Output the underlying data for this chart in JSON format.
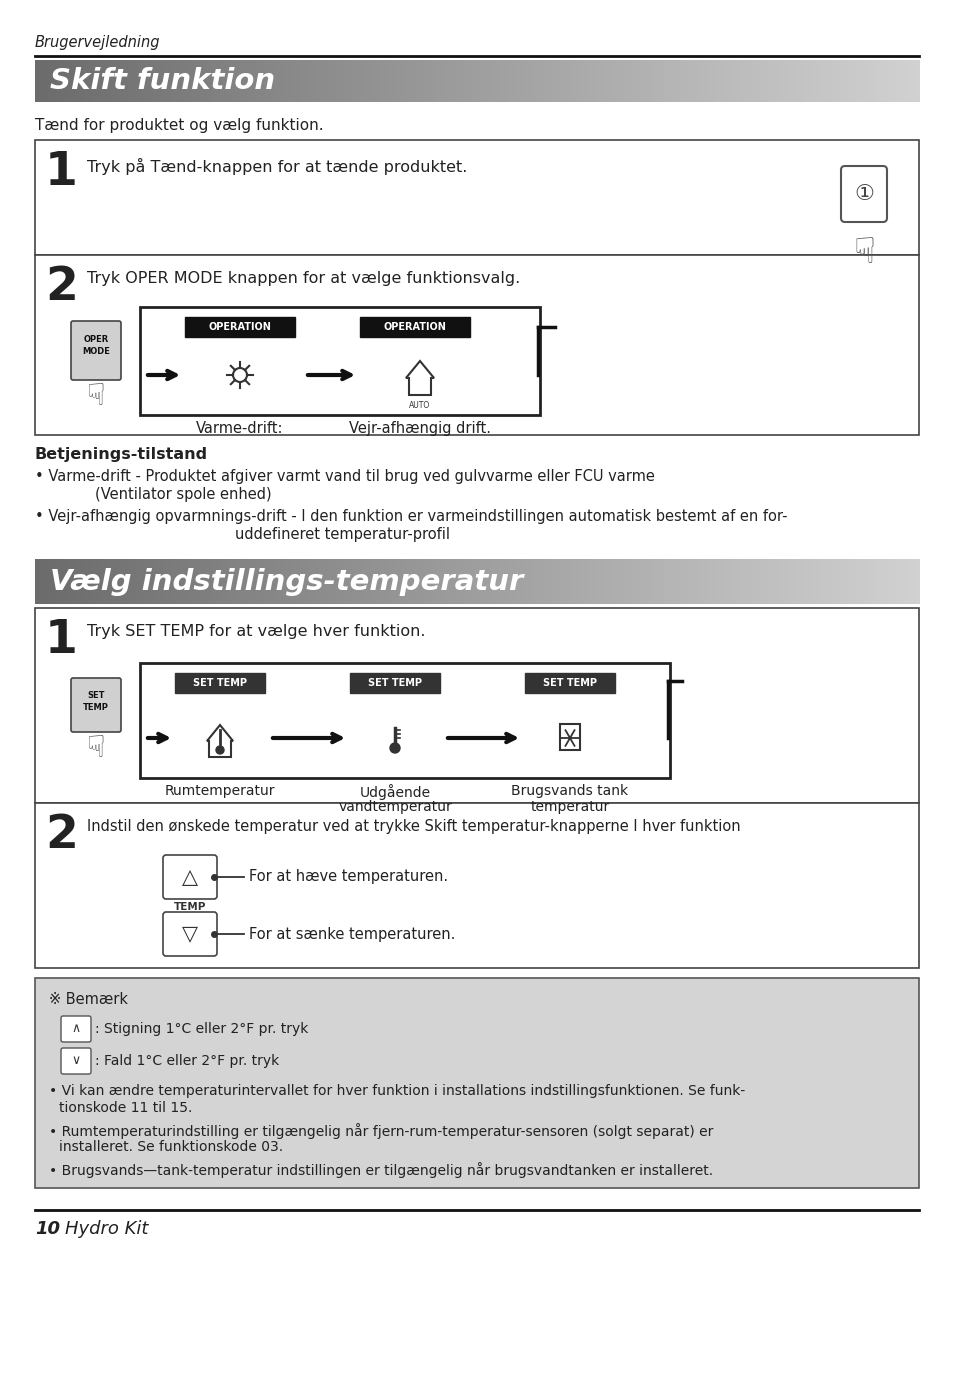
{
  "page_title_top": "Brugervejledning",
  "section1_title": "Skift funktion",
  "section1_subtitle": "Tænd for produktet og vælg funktion.",
  "step1_text": "Tryk på Tænd-knappen for at tænde produktet.",
  "step2_text": "Tryk OPER MODE knappen for at vælge funktionsvalg.",
  "step2_label1": "OPERATION",
  "step2_label2": "OPERATION",
  "step2_sub1": "Varme-drift:",
  "step2_sub2": "Vejr-afhængig drift.",
  "betjenings_title": "Betjenings-tilstand",
  "betjenings_text1a": "• Varme-drift - Produktet afgiver varmt vand til brug ved gulvvarme eller FCU varme",
  "betjenings_text1b": "(Ventilator spole enhed)",
  "betjenings_text2": "• Vejr-afhængig opvarmnings-drift - I den funktion er varmeindstillingen automatisk bestemt af en for-",
  "betjenings_text2b": "uddefineret temperatur-profil",
  "section2_title": "Vælg indstillings-temperatur",
  "s2_step1_text": "Tryk SET TEMP for at vælge hver funktion.",
  "s2_label1": "SET TEMP",
  "s2_label2": "SET TEMP",
  "s2_label3": "SET TEMP",
  "s2_sub1": "Rumtemperatur",
  "s2_sub2a": "Udgående",
  "s2_sub2b": "vandtemperatur",
  "s2_sub3a": "Brugsvands tank",
  "s2_sub3b": "temperatur",
  "s2_step2_text": "Indstil den ønskede temperatur ved at trykke Skift temperatur-knapperne I hver funktion",
  "s2_up_text": "For at hæve temperaturen.",
  "s2_down_text": "For at sænke temperaturen.",
  "note_title": "※ Bemærk",
  "note_up_sym": "∧",
  "note_up_text": ": Stigning 1°C eller 2°F pr. tryk",
  "note_down_sym": "∨",
  "note_down_text": ": Fald 1°C eller 2°F pr. tryk",
  "note1a": "• Vi kan ændre temperaturintervallet for hver funktion i installations indstillingsfunktionen. Se funk-",
  "note1b": "tionskode 11 til 15.",
  "note2a": "• Rumtemperaturindstilling er tilgængelig når fjern-rum-temperatur-sensoren (solgt separat) er",
  "note2b": "installeret. Se funktionskode 03.",
  "note3": "• Brugsvands—tank-temperatur indstillingen er tilgængelig når brugsvandtanken er installeret.",
  "footer_num": "10",
  "footer_text": "Hydro Kit",
  "bg_color": "#ffffff",
  "text_color": "#222222",
  "note_bg": "#d4d4d4",
  "banner_dark": "#707070",
  "banner_light": "#c8c8c8"
}
